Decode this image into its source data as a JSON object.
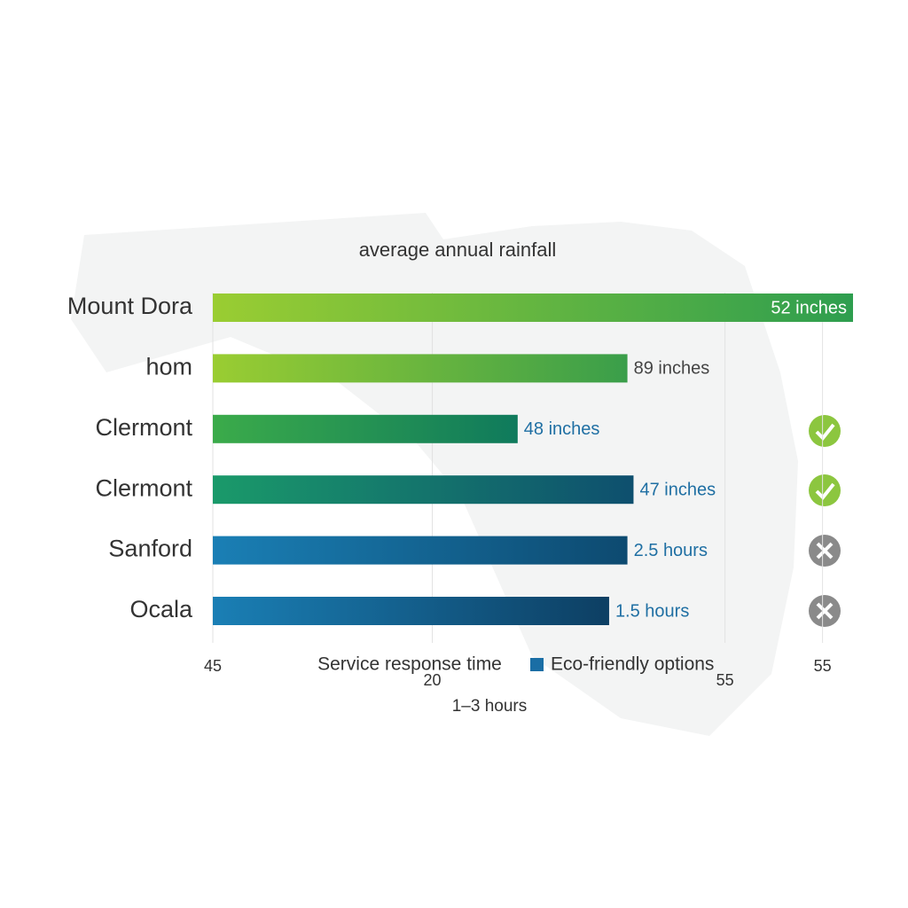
{
  "chart_data": {
    "type": "bar",
    "orientation": "horizontal",
    "title": "average annual rainfall",
    "x_label": "Service response time",
    "x_sublabel": "1–3 hours",
    "categories": [
      "Mount Dora",
      "hom",
      "Clermont",
      "Clermont",
      "Sanford",
      "Ocala"
    ],
    "series": [
      {
        "name": "Eco-friendly options",
        "color": "#1a6ea5",
        "values": [
          55.5,
          51.8,
          50.0,
          51.9,
          51.8,
          51.5
        ]
      }
    ],
    "annotations": [
      "52 inches",
      "89 inches",
      "48 inches",
      "47 inches",
      "2.5 hours",
      "1.5 hours"
    ],
    "annotation_colors": [
      "#ffffff",
      "#444444",
      "#1f6fa3",
      "#1f6fa3",
      "#1f6fa3",
      "#1f6fa3"
    ],
    "bar_gradients": [
      [
        "#9acd32",
        "#2e9e4f"
      ],
      [
        "#9acd32",
        "#3a9e4a"
      ],
      [
        "#3bab4a",
        "#0f7a5c"
      ],
      [
        "#1a9a6a",
        "#0e4f6e"
      ],
      [
        "#1a7fb5",
        "#0d4a70"
      ],
      [
        "#1a7fb5",
        "#0d3f63"
      ]
    ],
    "xlim": [
      45,
      55.5
    ],
    "xticks": [
      45,
      {
        "value": 48.6,
        "label": "20"
      },
      {
        "value": 53.4,
        "label": "55"
      },
      55
    ],
    "grid": true
  }
}
